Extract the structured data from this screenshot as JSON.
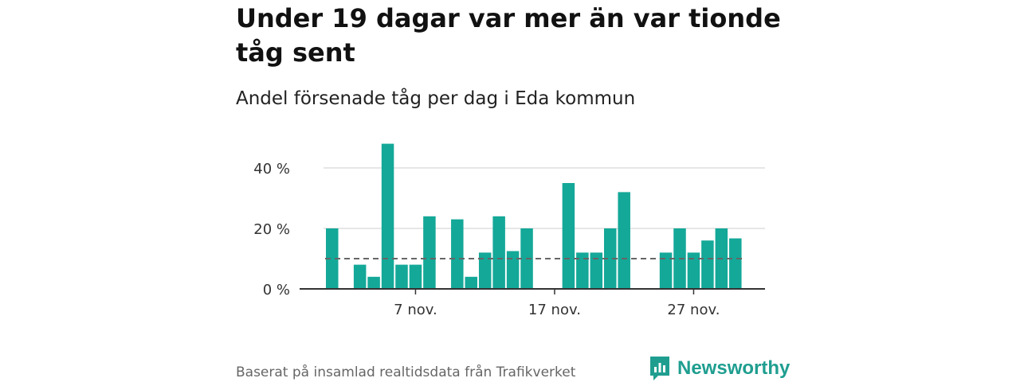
{
  "header": {
    "title": "Under 19 dagar var mer än var tionde tåg sent",
    "subtitle": "Andel försenade tåg per dag i Eda kommun"
  },
  "footer": {
    "source": "Baserat på insamlad realtidsdata från Trafikverket",
    "brand": "Newsworthy"
  },
  "colors": {
    "bar": "#14a898",
    "reference_line": "#666666",
    "grid": "#dddddd",
    "axis": "#333333",
    "brand": "#1f9e90"
  },
  "chart_data": {
    "type": "bar",
    "title": "Under 19 dagar var mer än var tionde tåg sent",
    "subtitle": "Andel försenade tåg per dag i Eda kommun",
    "xlabel": "",
    "ylabel": "",
    "x": [
      "1 nov.",
      "2 nov.",
      "3 nov.",
      "4 nov.",
      "5 nov.",
      "6 nov.",
      "7 nov.",
      "8 nov.",
      "9 nov.",
      "10 nov.",
      "11 nov.",
      "12 nov.",
      "13 nov.",
      "14 nov.",
      "15 nov.",
      "16 nov.",
      "17 nov.",
      "18 nov.",
      "19 nov.",
      "20 nov.",
      "21 nov.",
      "22 nov.",
      "23 nov.",
      "24 nov.",
      "25 nov.",
      "26 nov.",
      "27 nov.",
      "28 nov.",
      "29 nov.",
      "30 nov."
    ],
    "values": [
      20,
      0,
      8,
      4,
      48,
      8,
      8,
      24,
      0,
      23,
      4,
      12,
      24,
      12.5,
      20,
      0,
      0,
      35,
      12,
      12,
      20,
      32,
      0,
      0,
      12,
      20,
      12,
      16,
      20,
      16.7
    ],
    "reference_value": 10,
    "ylim": [
      0,
      50
    ],
    "yticks": [
      0,
      20,
      40
    ],
    "ytick_labels": [
      "0 %",
      "20 %",
      "40 %"
    ],
    "xticks": [
      "7 nov.",
      "17 nov.",
      "27 nov."
    ],
    "grid": true,
    "legend": "none"
  }
}
